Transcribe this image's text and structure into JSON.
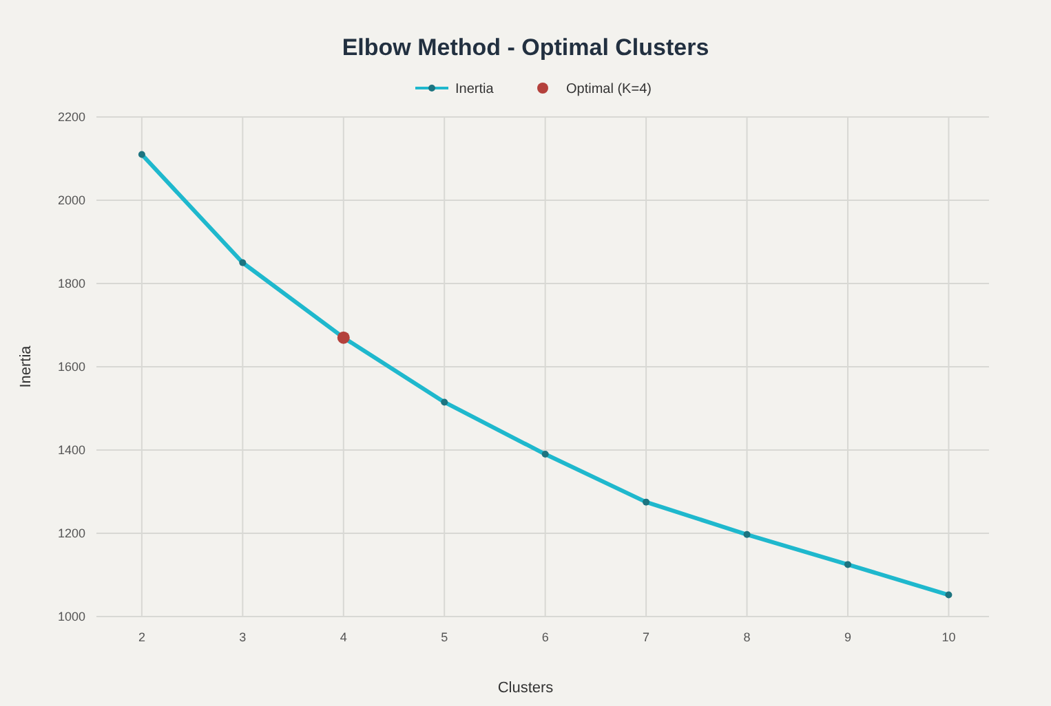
{
  "chart_data": {
    "type": "line",
    "title": "Elbow Method - Optimal Clusters",
    "xlabel": "Clusters",
    "ylabel": "Inertia",
    "x": [
      2,
      3,
      4,
      5,
      6,
      7,
      8,
      9,
      10
    ],
    "series": [
      {
        "name": "Inertia",
        "color": "#1fb8cd",
        "values": [
          2110,
          1850,
          1670,
          1515,
          1390,
          1275,
          1197,
          1125,
          1052
        ],
        "marker": "circle"
      },
      {
        "name": "Optimal (K=4)",
        "type": "scatter",
        "color": "#b4413c",
        "x": [
          4
        ],
        "values": [
          1670
        ],
        "marker": "circle"
      }
    ],
    "xlim": [
      1.55,
      10.4
    ],
    "xticks": [
      2,
      3,
      4,
      5,
      6,
      7,
      8,
      9,
      10
    ],
    "ylim": [
      1000,
      2200
    ],
    "yticks": [
      1000,
      1200,
      1400,
      1600,
      1800,
      2000,
      2200
    ],
    "grid": true,
    "legend": "top"
  }
}
